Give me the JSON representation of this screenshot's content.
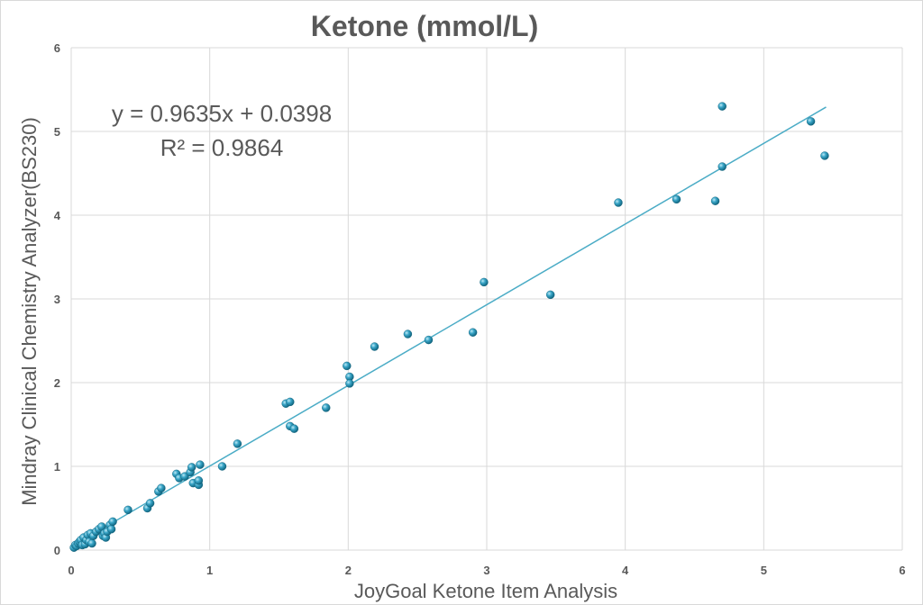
{
  "chart_data": {
    "type": "scatter",
    "title": "Ketone (mmol/L)",
    "xlabel": "JoyGoal Ketone Item Analysis",
    "ylabel": "Mindray Clinical Chemistry Analyzer(BS230)",
    "xlim": [
      0,
      6
    ],
    "ylim": [
      0,
      6
    ],
    "x_ticks": [
      "0",
      "1",
      "2",
      "3",
      "4",
      "5",
      "6"
    ],
    "y_ticks": [
      "0",
      "1",
      "2",
      "3",
      "4",
      "5",
      "6"
    ],
    "grid": true,
    "marker_color": "#3aa6c8",
    "trendline_color": "#4bacc6",
    "trendline": {
      "slope": 0.9635,
      "intercept": 0.0398,
      "x_range": [
        0,
        5.45
      ],
      "equation": "y = 0.9635x + 0.0398",
      "r_squared": "R² = 0.9864"
    },
    "points": [
      [
        0.02,
        0.03
      ],
      [
        0.03,
        0.06
      ],
      [
        0.04,
        0.05
      ],
      [
        0.05,
        0.08
      ],
      [
        0.06,
        0.1
      ],
      [
        0.07,
        0.12
      ],
      [
        0.08,
        0.06
      ],
      [
        0.09,
        0.15
      ],
      [
        0.1,
        0.07
      ],
      [
        0.11,
        0.12
      ],
      [
        0.12,
        0.18
      ],
      [
        0.13,
        0.1
      ],
      [
        0.14,
        0.2
      ],
      [
        0.15,
        0.08
      ],
      [
        0.16,
        0.17
      ],
      [
        0.18,
        0.22
      ],
      [
        0.2,
        0.25
      ],
      [
        0.22,
        0.28
      ],
      [
        0.23,
        0.17
      ],
      [
        0.24,
        0.2
      ],
      [
        0.25,
        0.15
      ],
      [
        0.26,
        0.22
      ],
      [
        0.28,
        0.3
      ],
      [
        0.29,
        0.25
      ],
      [
        0.3,
        0.34
      ],
      [
        0.41,
        0.48
      ],
      [
        0.55,
        0.5
      ],
      [
        0.57,
        0.56
      ],
      [
        0.63,
        0.7
      ],
      [
        0.65,
        0.74
      ],
      [
        0.76,
        0.91
      ],
      [
        0.78,
        0.86
      ],
      [
        0.82,
        0.88
      ],
      [
        0.86,
        0.93
      ],
      [
        0.87,
        0.99
      ],
      [
        0.88,
        0.8
      ],
      [
        0.92,
        0.78
      ],
      [
        0.92,
        0.83
      ],
      [
        0.93,
        1.02
      ],
      [
        1.09,
        1.0
      ],
      [
        1.2,
        1.27
      ],
      [
        1.55,
        1.75
      ],
      [
        1.58,
        1.77
      ],
      [
        1.58,
        1.48
      ],
      [
        1.61,
        1.45
      ],
      [
        1.84,
        1.7
      ],
      [
        1.99,
        2.2
      ],
      [
        2.01,
        2.07
      ],
      [
        2.01,
        1.99
      ],
      [
        2.19,
        2.43
      ],
      [
        2.43,
        2.58
      ],
      [
        2.58,
        2.51
      ],
      [
        2.9,
        2.6
      ],
      [
        2.98,
        3.2
      ],
      [
        3.46,
        3.05
      ],
      [
        3.95,
        4.15
      ],
      [
        4.37,
        4.19
      ],
      [
        4.65,
        4.17
      ],
      [
        4.7,
        5.3
      ],
      [
        4.7,
        4.58
      ],
      [
        5.34,
        5.12
      ],
      [
        5.44,
        4.71
      ]
    ]
  }
}
